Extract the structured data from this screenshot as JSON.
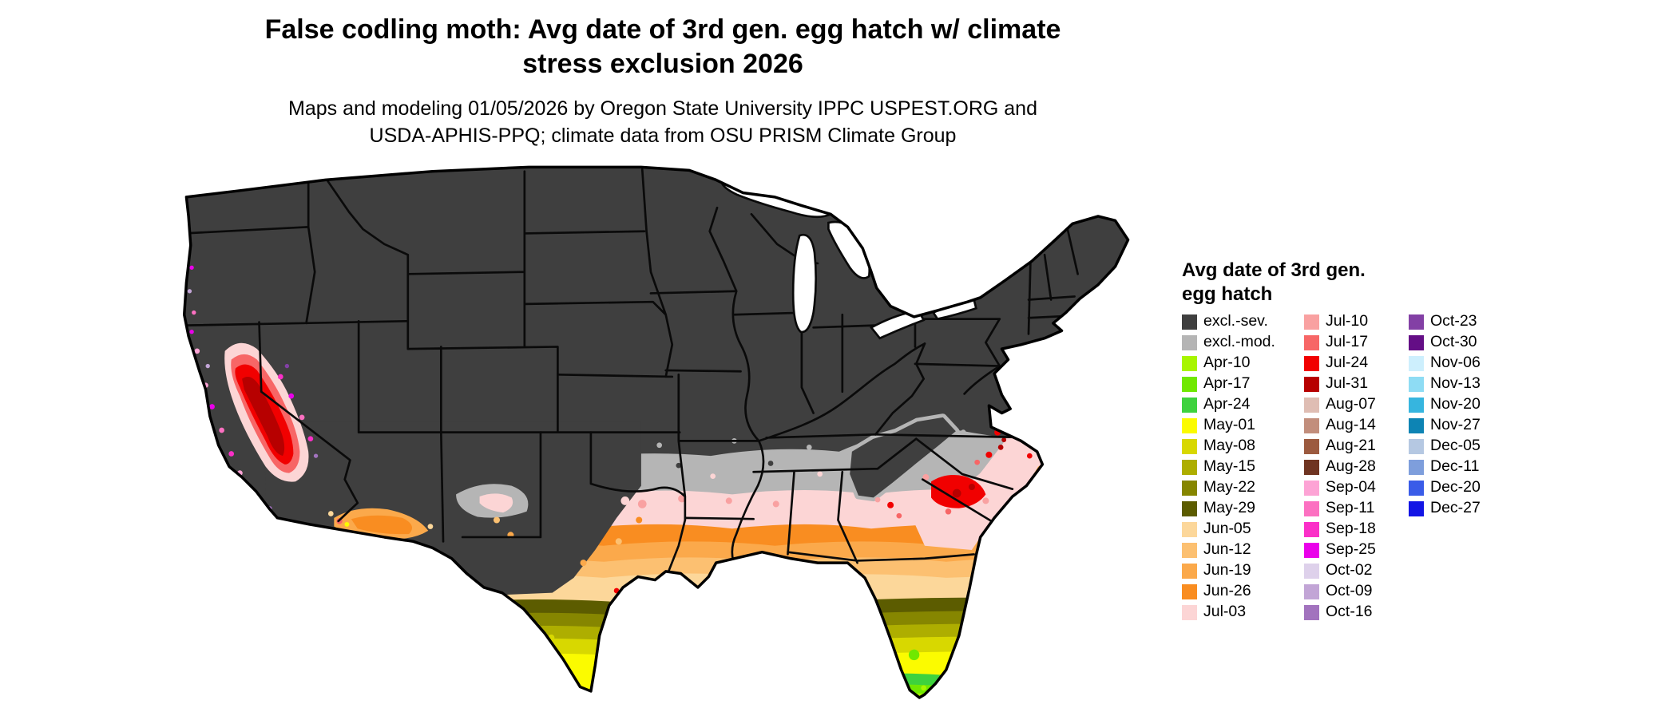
{
  "title": "False codling moth: Avg date of 3rd gen. egg hatch w/ climate stress exclusion 2026",
  "subtitle": "Maps and modeling 01/05/2026 by Oregon State University IPPC USPEST.ORG and USDA-APHIS-PPQ; climate data from OSU PRISM Climate Group",
  "legend": {
    "title": "Avg date of 3rd gen. egg hatch",
    "columns": [
      {
        "items": [
          {
            "label": "excl.-sev.",
            "color": "#3f3f3f"
          },
          {
            "label": "excl.-mod.",
            "color": "#b5b5b5"
          },
          {
            "label": "Apr-10",
            "color": "#a8f500"
          },
          {
            "label": "Apr-17",
            "color": "#70e800"
          },
          {
            "label": "Apr-24",
            "color": "#3ed23e"
          },
          {
            "label": "May-01",
            "color": "#fbfb00"
          },
          {
            "label": "May-08",
            "color": "#d8d800"
          },
          {
            "label": "May-15",
            "color": "#aeae00"
          },
          {
            "label": "May-22",
            "color": "#868600"
          },
          {
            "label": "May-29",
            "color": "#5c5c00"
          },
          {
            "label": "Jun-05",
            "color": "#fcd79a"
          },
          {
            "label": "Jun-12",
            "color": "#fcc071"
          },
          {
            "label": "Jun-19",
            "color": "#fba94b"
          },
          {
            "label": "Jun-26",
            "color": "#f98d21"
          },
          {
            "label": "Jul-03",
            "color": "#fcd5d5"
          }
        ]
      },
      {
        "items": [
          {
            "label": "Jul-10",
            "color": "#f9a1a1"
          },
          {
            "label": "Jul-17",
            "color": "#f76666"
          },
          {
            "label": "Jul-24",
            "color": "#f10000"
          },
          {
            "label": "Jul-31",
            "color": "#b70000"
          },
          {
            "label": "Aug-07",
            "color": "#dfbdb3"
          },
          {
            "label": "Aug-14",
            "color": "#c28e7c"
          },
          {
            "label": "Aug-21",
            "color": "#9c5a3f"
          },
          {
            "label": "Aug-28",
            "color": "#6f3421"
          },
          {
            "label": "Sep-04",
            "color": "#fda3d5"
          },
          {
            "label": "Sep-11",
            "color": "#fc70c1"
          },
          {
            "label": "Sep-18",
            "color": "#fb2fc8"
          },
          {
            "label": "Sep-25",
            "color": "#ea00ea"
          },
          {
            "label": "Oct-02",
            "color": "#ded1eb"
          },
          {
            "label": "Oct-09",
            "color": "#c2a5d6"
          },
          {
            "label": "Oct-16",
            "color": "#a273be"
          }
        ]
      },
      {
        "items": [
          {
            "label": "Oct-23",
            "color": "#8340a5"
          },
          {
            "label": "Oct-30",
            "color": "#640e86"
          },
          {
            "label": "Nov-06",
            "color": "#cdeffd"
          },
          {
            "label": "Nov-13",
            "color": "#8edcf4"
          },
          {
            "label": "Nov-20",
            "color": "#36b5df"
          },
          {
            "label": "Nov-27",
            "color": "#0d84b4"
          },
          {
            "label": "Dec-05",
            "color": "#b5c8e2"
          },
          {
            "label": "Dec-11",
            "color": "#7e9edc"
          },
          {
            "label": "Dec-20",
            "color": "#3a5ce8"
          },
          {
            "label": "Dec-27",
            "color": "#1315e5"
          }
        ]
      }
    ]
  }
}
